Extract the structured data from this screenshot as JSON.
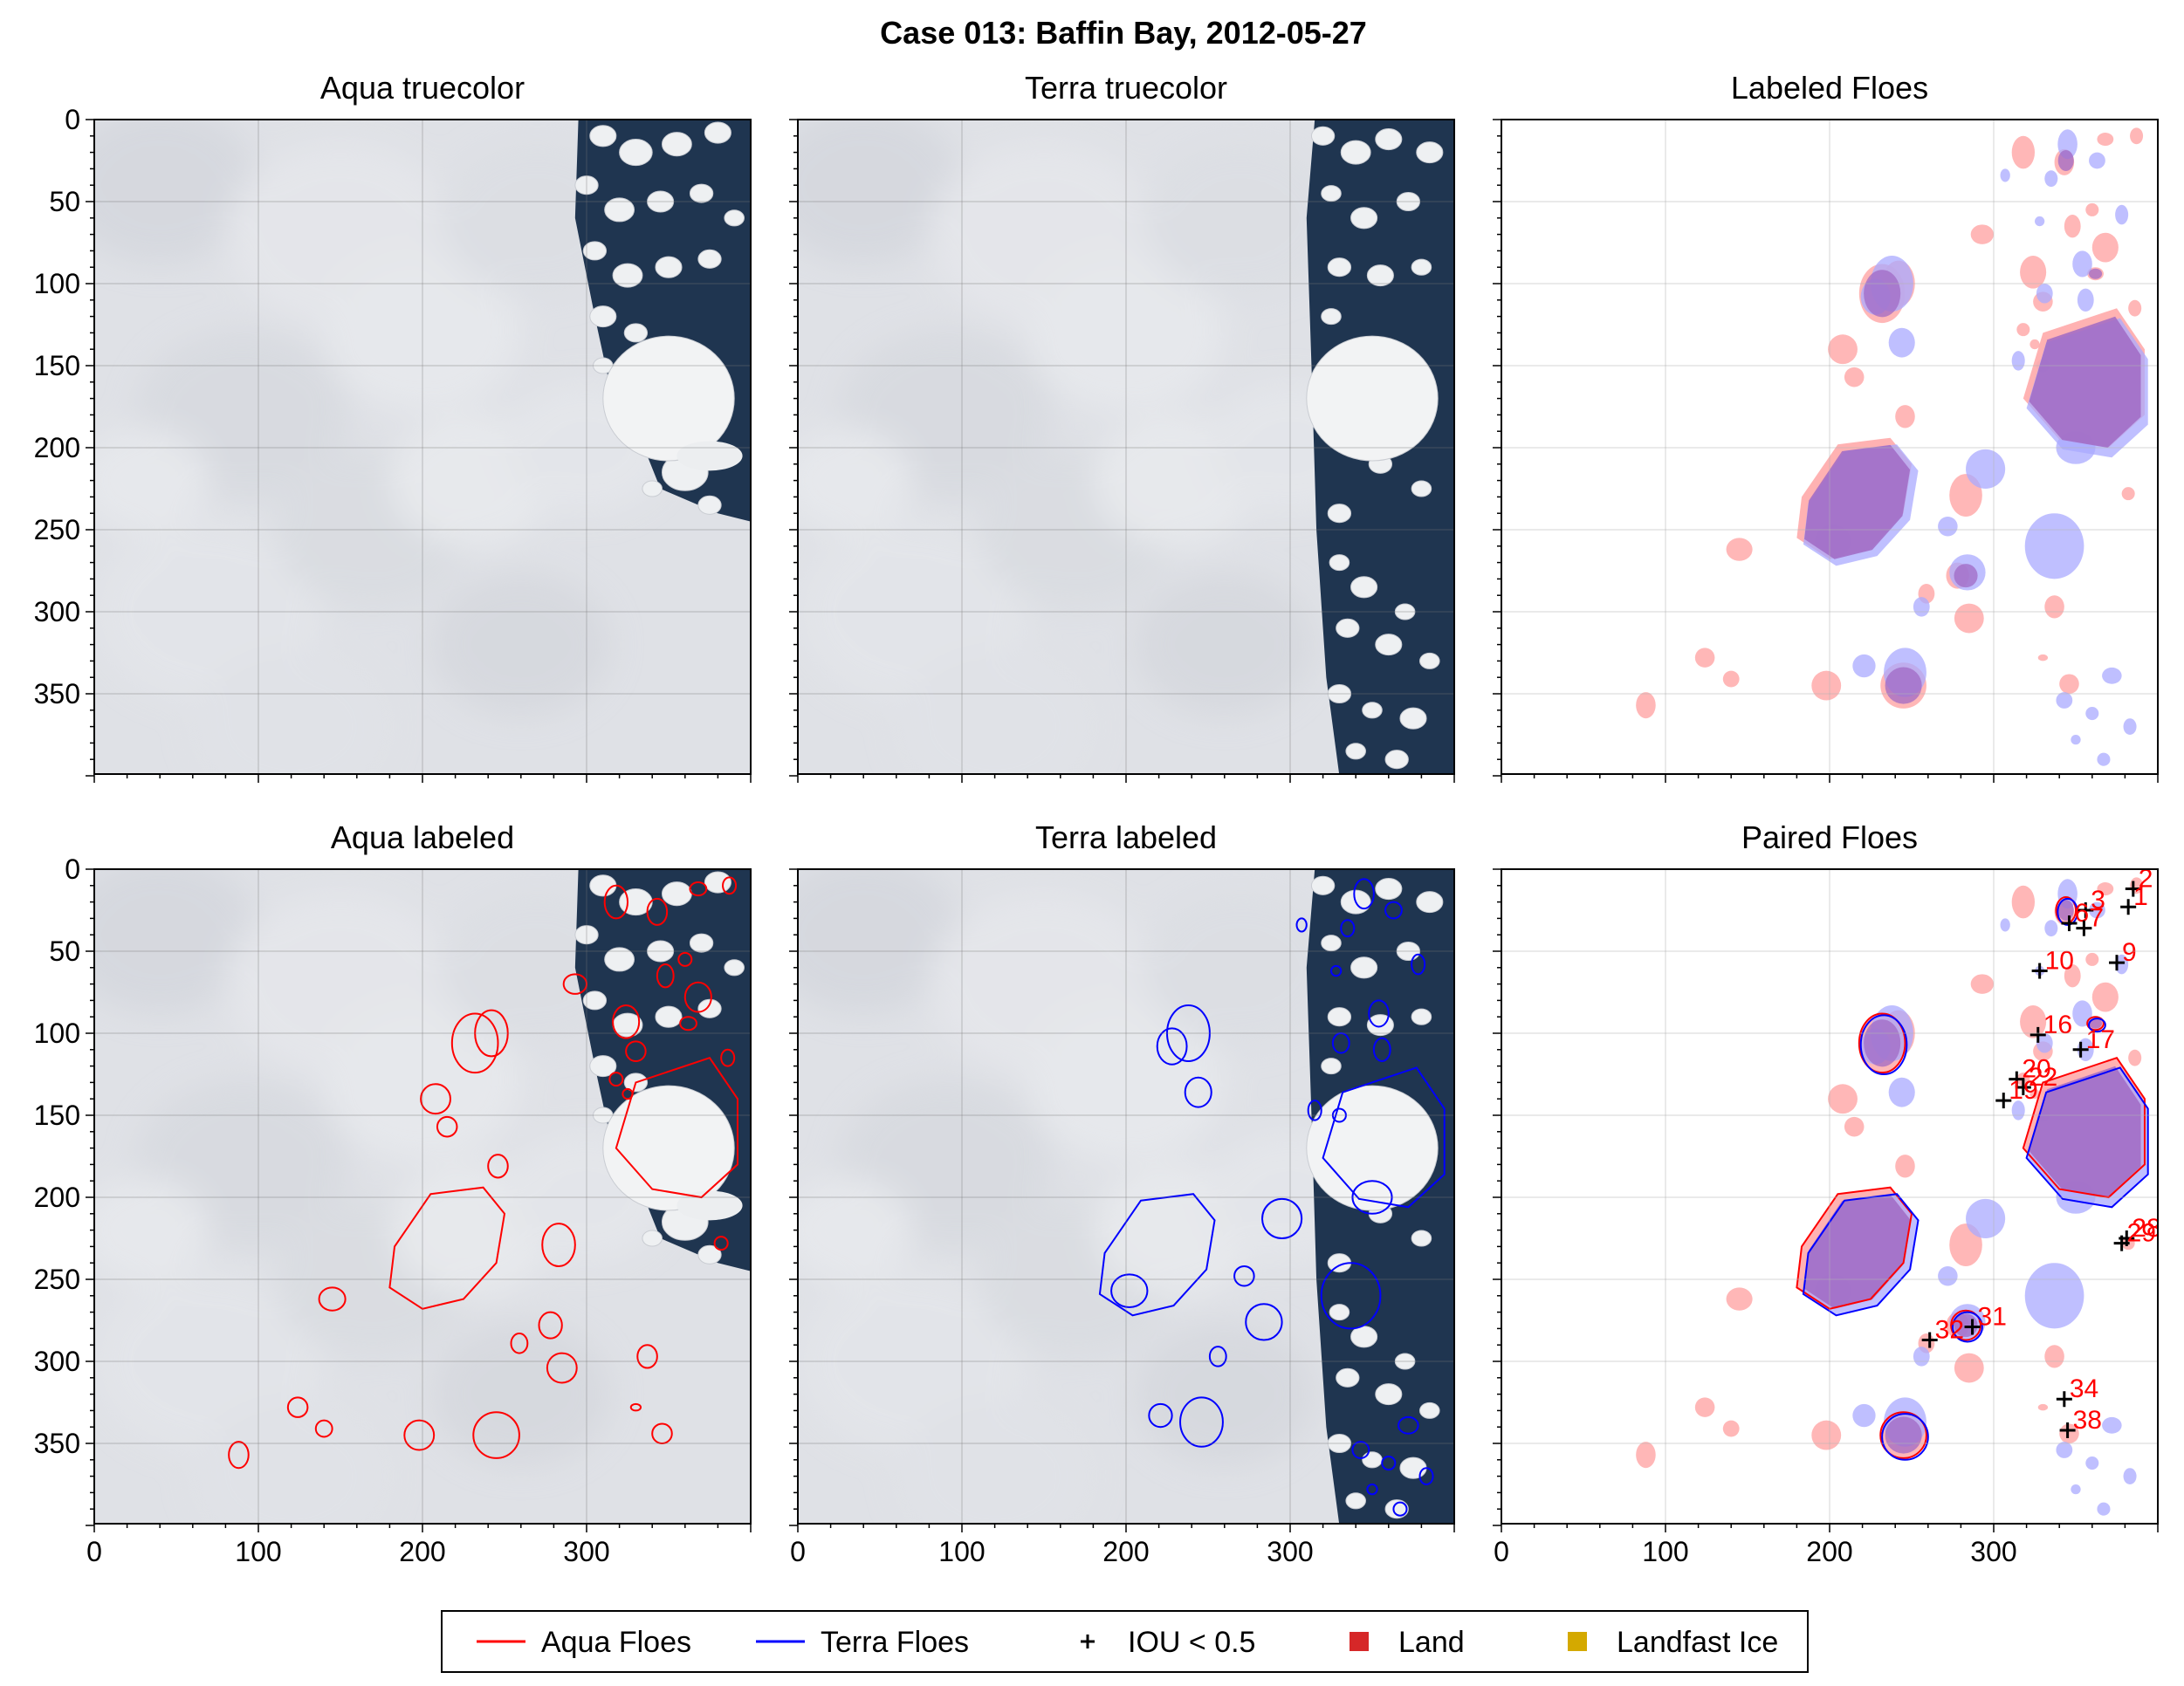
{
  "figure": {
    "title": "Case 013: Baffin Bay, 2012-05-27"
  },
  "colors": {
    "aqua": "#ff0000",
    "terra": "#0000ff",
    "aqua_fill": "#ffaaaa",
    "terra_fill": "#aaaaff",
    "overlap_fill": "#a06ac4",
    "land": "#d62728",
    "landfast_ice": "#d4a900",
    "ocean": "#1f3550",
    "cloud": "#dfe1e6",
    "floe": "#eef0f2"
  },
  "chart_data": [
    {
      "type": "image",
      "title": "Aqua truecolor",
      "xlim": [
        0,
        400
      ],
      "ylim": [
        400,
        0
      ],
      "xticks": [
        0,
        100,
        200,
        300
      ],
      "yticks": [
        0,
        50,
        100,
        150,
        200,
        250,
        300,
        350
      ],
      "grid": true
    },
    {
      "type": "image",
      "title": "Terra truecolor",
      "xlim": [
        0,
        400
      ],
      "ylim": [
        400,
        0
      ],
      "grid": true
    },
    {
      "type": "image",
      "title": "Labeled Floes",
      "xlim": [
        0,
        400
      ],
      "ylim": [
        400,
        0
      ],
      "grid": true
    },
    {
      "type": "image",
      "title": "Aqua labeled",
      "xlim": [
        0,
        400
      ],
      "ylim": [
        400,
        0
      ],
      "xticks": [
        0,
        100,
        200,
        300
      ],
      "yticks": [
        0,
        50,
        100,
        150,
        200,
        250,
        300,
        350
      ],
      "grid": true
    },
    {
      "type": "image",
      "title": "Terra labeled",
      "xlim": [
        0,
        400
      ],
      "ylim": [
        400,
        0
      ],
      "xticks": [
        0,
        100,
        200,
        300
      ],
      "grid": true
    },
    {
      "type": "scatter",
      "title": "Paired Floes",
      "xlim": [
        0,
        400
      ],
      "ylim": [
        400,
        0
      ],
      "xticks": [
        0,
        100,
        200,
        300
      ],
      "grid": true,
      "iou_markers": [
        {
          "label": "2",
          "x": 385,
          "y": 12
        },
        {
          "label": "1",
          "x": 382,
          "y": 23
        },
        {
          "label": "3",
          "x": 356,
          "y": 25
        },
        {
          "label": "6",
          "x": 346,
          "y": 33
        },
        {
          "label": "7",
          "x": 355,
          "y": 36
        },
        {
          "label": "9",
          "x": 375,
          "y": 57
        },
        {
          "label": "10",
          "x": 328,
          "y": 62
        },
        {
          "label": "16",
          "x": 327,
          "y": 101
        },
        {
          "label": "17",
          "x": 353,
          "y": 110
        },
        {
          "label": "20",
          "x": 314,
          "y": 128
        },
        {
          "label": "22",
          "x": 318,
          "y": 133
        },
        {
          "label": "19",
          "x": 306,
          "y": 141
        },
        {
          "label": "28",
          "x": 381,
          "y": 225
        },
        {
          "label": "29",
          "x": 378,
          "y": 228
        },
        {
          "label": "31",
          "x": 287,
          "y": 279
        },
        {
          "label": "32",
          "x": 261,
          "y": 287
        },
        {
          "label": "34",
          "x": 343,
          "y": 323
        },
        {
          "label": "38",
          "x": 345,
          "y": 342
        }
      ]
    }
  ],
  "legend": {
    "placement": "bottom-center",
    "items": [
      {
        "label": "Aqua Floes",
        "kind": "line",
        "color": "#ff0000"
      },
      {
        "label": "Terra Floes",
        "kind": "line",
        "color": "#0000ff"
      },
      {
        "label": "IOU < 0.5",
        "kind": "plus",
        "color": "#000000"
      },
      {
        "label": "Land",
        "kind": "square",
        "color": "#d62728"
      },
      {
        "label": "Landfast Ice",
        "kind": "square",
        "color": "#d4a900"
      }
    ]
  }
}
